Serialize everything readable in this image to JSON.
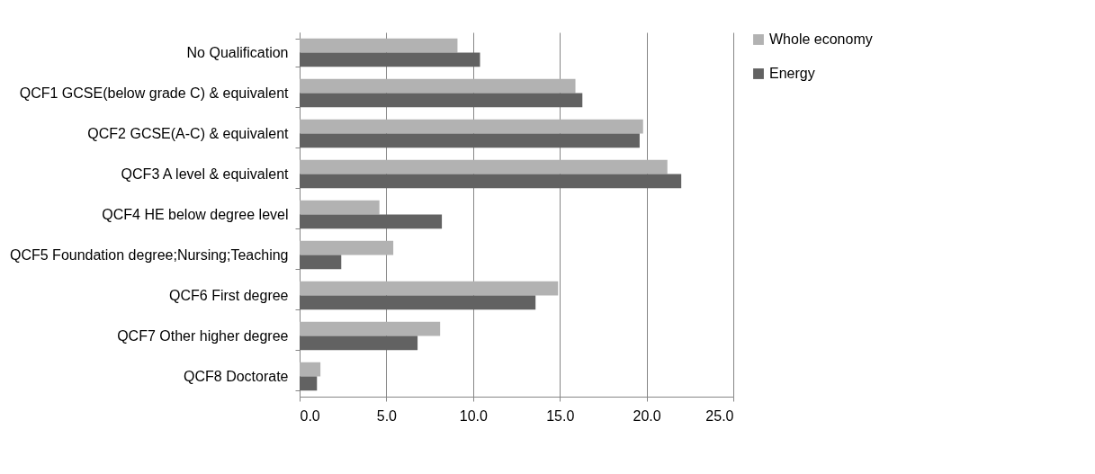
{
  "chart_data": {
    "type": "bar",
    "orientation": "horizontal",
    "categories": [
      "No Qualification",
      "QCF1 GCSE(below grade C) & equivalent",
      "QCF2 GCSE(A-C) & equivalent",
      "QCF3 A level & equivalent",
      "QCF4 HE below degree level",
      "QCF5 Foundation degree;Nursing;Teaching",
      "QCF6 First degree",
      "QCF7 Other higher degree",
      "QCF8 Doctorate"
    ],
    "series": [
      {
        "name": "Whole economy",
        "color": "#b2b2b2",
        "values": [
          9.1,
          15.9,
          19.8,
          21.2,
          4.6,
          5.4,
          14.9,
          8.1,
          1.2
        ]
      },
      {
        "name": "Energy",
        "color": "#626262",
        "values": [
          10.4,
          16.3,
          19.6,
          22.0,
          8.2,
          2.4,
          13.6,
          6.8,
          1.0
        ]
      }
    ],
    "xlim": [
      0,
      25
    ],
    "xticks": [
      {
        "value": 0,
        "label": "0.0"
      },
      {
        "value": 5,
        "label": "5.0"
      },
      {
        "value": 10,
        "label": "10.0"
      },
      {
        "value": 15,
        "label": "15.0"
      },
      {
        "value": 20,
        "label": "20.0"
      },
      {
        "value": 25,
        "label": "25.0"
      }
    ],
    "grid": "x",
    "legend": "right"
  }
}
